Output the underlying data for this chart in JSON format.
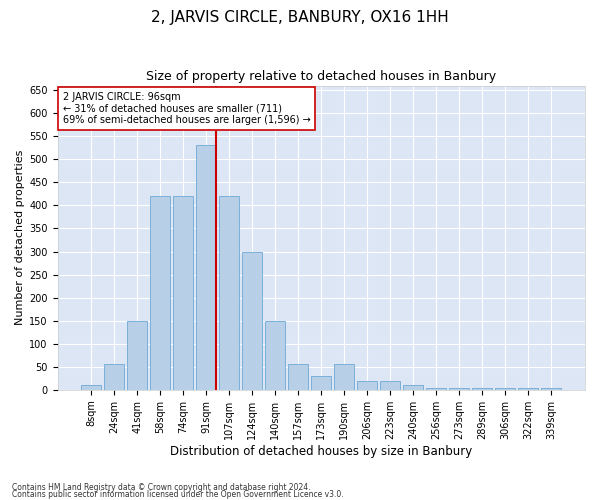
{
  "title": "2, JARVIS CIRCLE, BANBURY, OX16 1HH",
  "subtitle": "Size of property relative to detached houses in Banbury",
  "xlabel": "Distribution of detached houses by size in Banbury",
  "ylabel": "Number of detached properties",
  "categories": [
    "8sqm",
    "24sqm",
    "41sqm",
    "58sqm",
    "74sqm",
    "91sqm",
    "107sqm",
    "124sqm",
    "140sqm",
    "157sqm",
    "173sqm",
    "190sqm",
    "206sqm",
    "223sqm",
    "240sqm",
    "256sqm",
    "273sqm",
    "289sqm",
    "306sqm",
    "322sqm",
    "339sqm"
  ],
  "values": [
    10,
    55,
    150,
    420,
    420,
    530,
    420,
    300,
    150,
    55,
    30,
    55,
    20,
    20,
    10,
    5,
    5,
    5,
    5,
    5,
    5
  ],
  "bar_color": "#b8cfe8",
  "bar_edge_color": "#6fa8d4",
  "vline_color": "#cc0000",
  "vline_pos": 5.42,
  "annotation_text": "2 JARVIS CIRCLE: 96sqm\n← 31% of detached houses are smaller (711)\n69% of semi-detached houses are larger (1,596) →",
  "annotation_box_color": "white",
  "annotation_box_edge_color": "#cc0000",
  "background_color": "#dce6f5",
  "ylim": [
    0,
    660
  ],
  "yticks": [
    0,
    50,
    100,
    150,
    200,
    250,
    300,
    350,
    400,
    450,
    500,
    550,
    600,
    650
  ],
  "footnote1": "Contains HM Land Registry data © Crown copyright and database right 2024.",
  "footnote2": "Contains public sector information licensed under the Open Government Licence v3.0.",
  "title_fontsize": 11,
  "subtitle_fontsize": 9,
  "xlabel_fontsize": 8.5,
  "ylabel_fontsize": 8,
  "tick_fontsize": 7,
  "annot_fontsize": 7
}
